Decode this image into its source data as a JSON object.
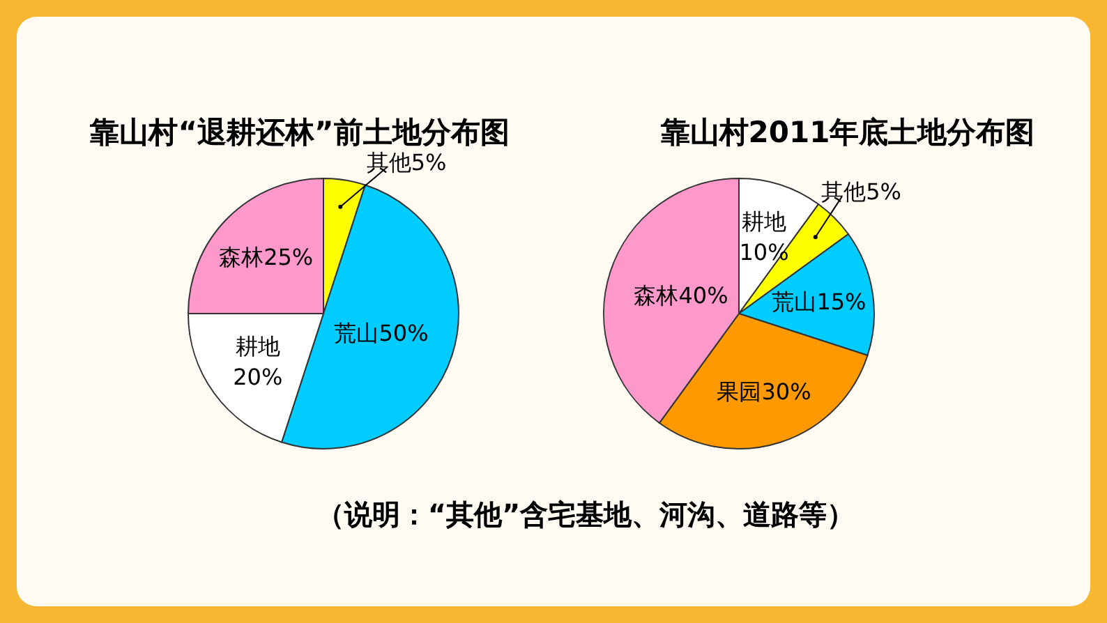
{
  "chart_data": [
    {
      "type": "pie",
      "title": "靠山村“退耕还林”前土地分布图",
      "categories": [
        "其他5%",
        "荒山50%",
        "耕地\n20%",
        "森林25%"
      ],
      "values": [
        5,
        50,
        20,
        25
      ],
      "colors": [
        "#ffff00",
        "#00ccff",
        "#ffffff",
        "#ff99cc"
      ],
      "annotations": [
        "（说明：“其他”含宅基地、河沟、道路等）"
      ]
    },
    {
      "type": "pie",
      "title": "靠山村2011年底土地分布图",
      "categories": [
        "耕地\n10%",
        "其他5%",
        "荒山15%",
        "果园30%",
        "森林40%"
      ],
      "values": [
        10,
        5,
        15,
        30,
        40
      ],
      "colors": [
        "#ffffff",
        "#ffff00",
        "#00ccff",
        "#ff9900",
        "#ff99cc"
      ]
    }
  ]
}
